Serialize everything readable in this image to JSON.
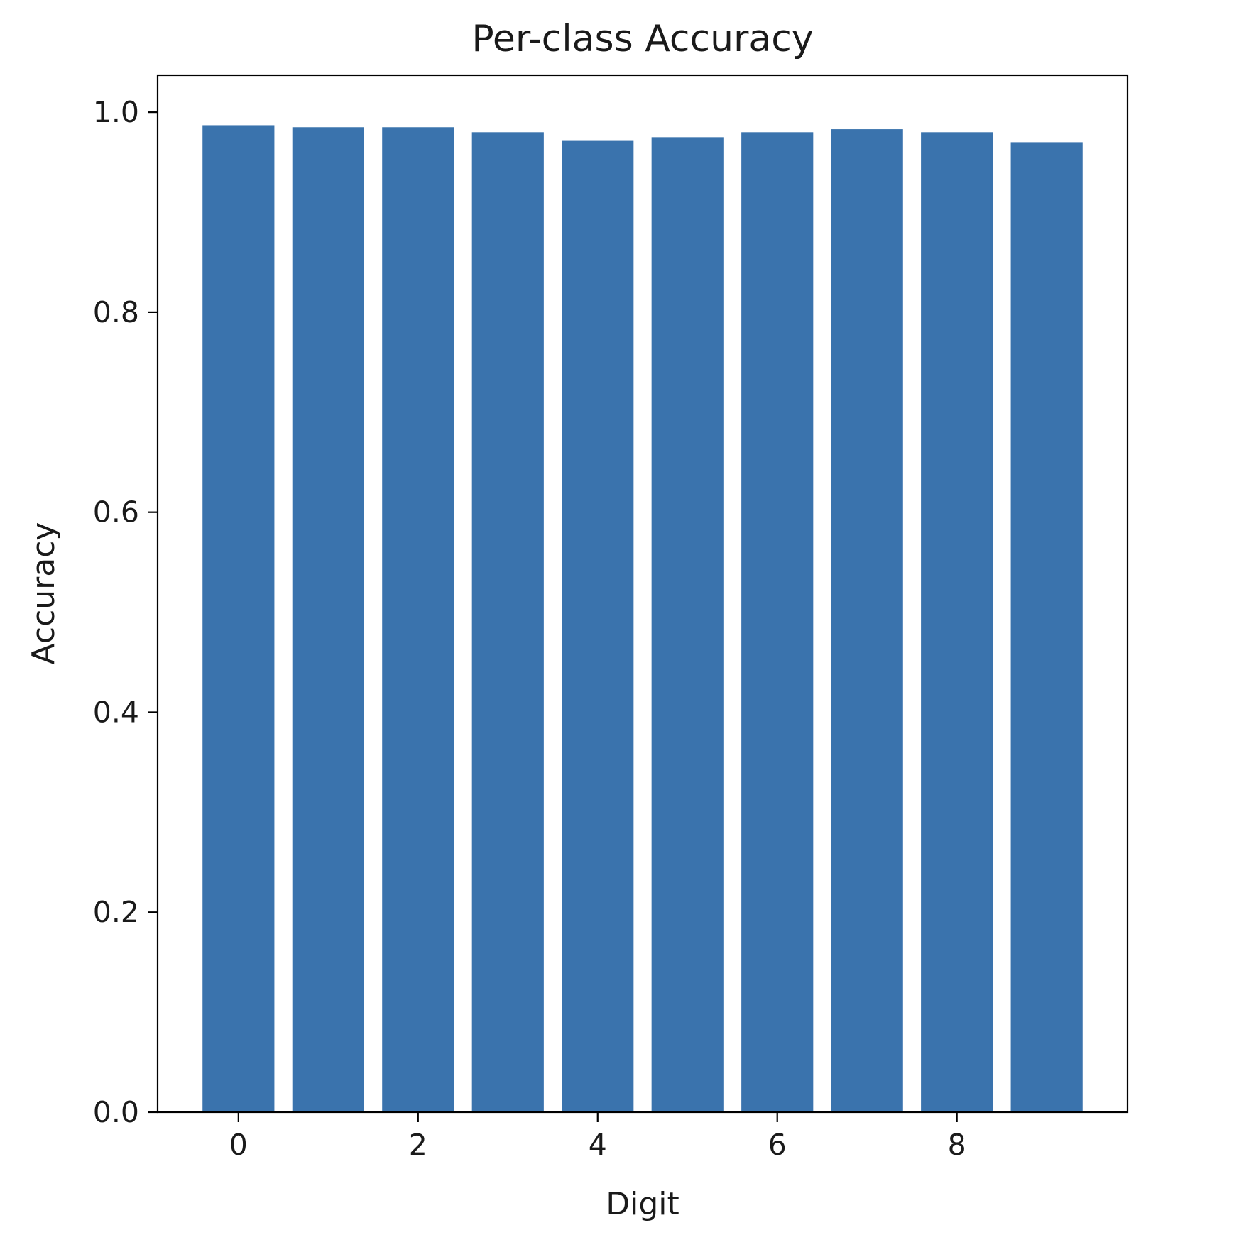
{
  "chart_data": {
    "type": "bar",
    "title": "Per-class Accuracy",
    "xlabel": "Digit",
    "ylabel": "Accuracy",
    "categories": [
      0,
      1,
      2,
      3,
      4,
      5,
      6,
      7,
      8,
      9
    ],
    "values": [
      0.987,
      0.985,
      0.985,
      0.98,
      0.972,
      0.975,
      0.98,
      0.983,
      0.98,
      0.97
    ],
    "xlim": [
      -0.9,
      9.9
    ],
    "ylim": [
      0,
      1.037
    ],
    "xticks": [
      0,
      2,
      4,
      6,
      8
    ],
    "xtick_labels": [
      "0",
      "2",
      "4",
      "6",
      "8"
    ],
    "yticks": [
      0.0,
      0.2,
      0.4,
      0.6,
      0.8,
      1.0
    ],
    "ytick_labels": [
      "0.0",
      "0.2",
      "0.4",
      "0.6",
      "0.8",
      "1.0"
    ],
    "bar_width": 0.8,
    "bar_color": "#3a73ad",
    "grid": false,
    "legend": "none"
  }
}
